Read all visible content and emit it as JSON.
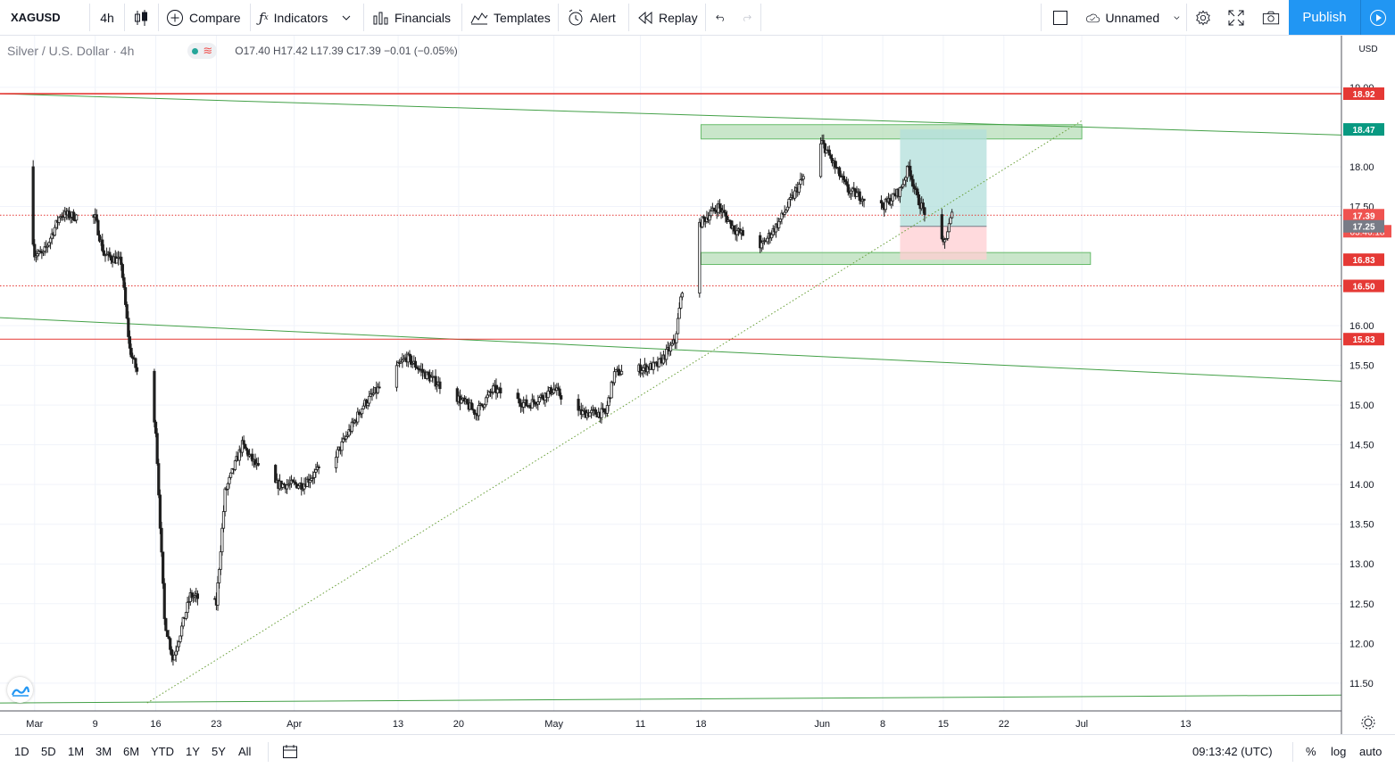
{
  "toolbar": {
    "symbol": "XAGUSD",
    "interval": "4h",
    "compare_label": "Compare",
    "indicators_label": "Indicators",
    "financials_label": "Financials",
    "templates_label": "Templates",
    "alert_label": "Alert",
    "replay_label": "Replay",
    "layout_name": "Unnamed",
    "publish_label": "Publish"
  },
  "legend": {
    "title": "Silver / U.S. Dollar · 4h",
    "ohlc": "O17.40  H17.42  L17.39  C17.39  −0.01 (−0.05%)"
  },
  "axis": {
    "currency": "USD",
    "time_labels": [
      "Mar",
      "9",
      "16",
      "23",
      "Apr",
      "13",
      "20",
      "May",
      "11",
      "18",
      "Jun",
      "8",
      "15",
      "22",
      "Jul",
      "13"
    ]
  },
  "bottom": {
    "ranges": [
      "1D",
      "5D",
      "1M",
      "3M",
      "6M",
      "YTD",
      "1Y",
      "5Y",
      "All"
    ],
    "clock": "09:13:42 (UTC)",
    "percent_label": "%",
    "log_label": "log",
    "auto_label": "auto"
  },
  "colors": {
    "up": "#26a69a",
    "down": "#ef5350",
    "candle_body": "#1f1f1f",
    "level_red": "#e53935",
    "trend_green": "#4caf50",
    "zone_green": "#a5d6a7",
    "profit_zone": "#b2dfdb",
    "loss_zone": "#ffcdd2",
    "accent": "#2196f3"
  },
  "chart_data": {
    "type": "candlestick",
    "symbol": "XAGUSD",
    "title": "Silver / U.S. Dollar · 4h",
    "interval": "4h",
    "ylabel": "USD",
    "ylim": [
      11.15,
      19.65
    ],
    "y_ticks": [
      11.5,
      12.0,
      12.5,
      13.0,
      13.5,
      14.0,
      14.5,
      15.0,
      15.5,
      16.0,
      17.5,
      18.0,
      19.0
    ],
    "x_labels": [
      "Mar",
      "9",
      "16",
      "23",
      "Apr",
      "13",
      "20",
      "May",
      "11",
      "18",
      "Jun",
      "8",
      "15",
      "22",
      "Jul",
      "13"
    ],
    "price_path": [
      {
        "date": "2020-03-01",
        "close": 18.0
      },
      {
        "date": "2020-03-02",
        "close": 16.9
      },
      {
        "date": "2020-03-03",
        "close": 16.9
      },
      {
        "date": "2020-03-05",
        "close": 17.4
      },
      {
        "date": "2020-03-09",
        "close": 17.35
      },
      {
        "date": "2020-03-10",
        "close": 16.9
      },
      {
        "date": "2020-03-12",
        "close": 16.8
      },
      {
        "date": "2020-03-13",
        "close": 15.7
      },
      {
        "date": "2020-03-16",
        "close": 14.7
      },
      {
        "date": "2020-03-17",
        "close": 12.3
      },
      {
        "date": "2020-03-18",
        "close": 11.8
      },
      {
        "date": "2020-03-20",
        "close": 12.6
      },
      {
        "date": "2020-03-23",
        "close": 12.5
      },
      {
        "date": "2020-03-24",
        "close": 13.9
      },
      {
        "date": "2020-03-26",
        "close": 14.5
      },
      {
        "date": "2020-03-29",
        "close": 14.0
      },
      {
        "date": "2020-04-02",
        "close": 14.0
      },
      {
        "date": "2020-04-06",
        "close": 14.4
      },
      {
        "date": "2020-04-09",
        "close": 15.0
      },
      {
        "date": "2020-04-14",
        "close": 15.6
      },
      {
        "date": "2020-04-16",
        "close": 15.4
      },
      {
        "date": "2020-04-21",
        "close": 15.0
      },
      {
        "date": "2020-04-22",
        "close": 14.9
      },
      {
        "date": "2020-04-24",
        "close": 15.2
      },
      {
        "date": "2020-04-28",
        "close": 15.0
      },
      {
        "date": "2020-05-01",
        "close": 15.2
      },
      {
        "date": "2020-05-04",
        "close": 14.9
      },
      {
        "date": "2020-05-07",
        "close": 14.9
      },
      {
        "date": "2020-05-08",
        "close": 15.4
      },
      {
        "date": "2020-05-13",
        "close": 15.5
      },
      {
        "date": "2020-05-15",
        "close": 15.8
      },
      {
        "date": "2020-05-16",
        "close": 16.6
      },
      {
        "date": "2020-05-18",
        "close": 17.3
      },
      {
        "date": "2020-05-20",
        "close": 17.5
      },
      {
        "date": "2020-05-22",
        "close": 17.2
      },
      {
        "date": "2020-05-25",
        "close": 17.0
      },
      {
        "date": "2020-05-27",
        "close": 17.3
      },
      {
        "date": "2020-05-29",
        "close": 17.7
      },
      {
        "date": "2020-06-01",
        "close": 18.3
      },
      {
        "date": "2020-06-02",
        "close": 18.1
      },
      {
        "date": "2020-06-04",
        "close": 17.7
      },
      {
        "date": "2020-06-06",
        "close": 17.6
      },
      {
        "date": "2020-06-08",
        "close": 17.5
      },
      {
        "date": "2020-06-10",
        "close": 17.7
      },
      {
        "date": "2020-06-11",
        "close": 18.0
      },
      {
        "date": "2020-06-12",
        "close": 17.6
      },
      {
        "date": "2020-06-15",
        "close": 17.0
      },
      {
        "date": "2020-06-16",
        "close": 17.39
      }
    ],
    "horizontal_levels": [
      {
        "price": 18.92,
        "label": "18.92",
        "style": "solid"
      },
      {
        "price": 17.39,
        "label": "17.39",
        "style": "dotted"
      },
      {
        "price": 16.5,
        "label": "16.50",
        "style": "dotted"
      },
      {
        "price": 15.83,
        "label": "15.83",
        "style": "solid"
      }
    ],
    "trend_lines": [
      {
        "from": {
          "date": "2020-02-27",
          "price": 18.92
        },
        "to": {
          "date": "2020-07-31",
          "price": 18.4
        }
      },
      {
        "from": {
          "date": "2020-02-27",
          "price": 16.1
        },
        "to": {
          "date": "2020-07-31",
          "price": 15.3
        }
      },
      {
        "from": {
          "date": "2020-02-27",
          "price": 11.25
        },
        "to": {
          "date": "2020-07-31",
          "price": 11.35
        }
      },
      {
        "from": {
          "date": "2020-03-15",
          "price": 11.25
        },
        "to": {
          "date": "2020-07-01",
          "price": 18.58
        },
        "style": "dotted"
      }
    ],
    "zones": [
      {
        "from": "2020-05-18",
        "to": "2020-07-01",
        "low": 18.35,
        "high": 18.53
      },
      {
        "from": "2020-05-18",
        "to": "2020-07-02",
        "low": 16.77,
        "high": 16.92
      }
    ],
    "position": {
      "from": "2020-06-10",
      "to": "2020-06-20",
      "entry": 17.25,
      "target": 18.47,
      "stop": 16.83,
      "entry_label": "17.25",
      "target_label": "18.47",
      "stop_label": "16.83"
    },
    "last_price": 17.39,
    "countdown": "03:46:18"
  }
}
